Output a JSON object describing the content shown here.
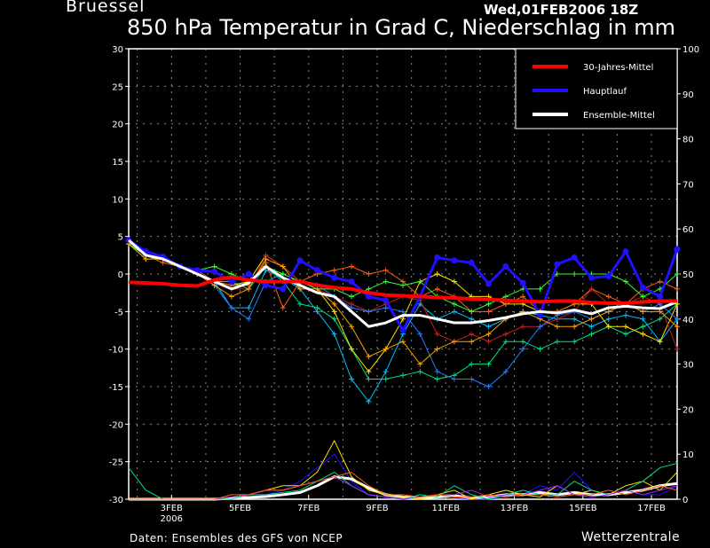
{
  "header": {
    "station": "Bruessel",
    "run": "Wed,01FEB2006 18Z",
    "title": "850 hPa Temperatur in Grad C, Niederschlag in mm"
  },
  "footer": {
    "credit": "Daten: Ensembles des GFS von NCEP",
    "brand": "Wetterzentrale"
  },
  "chart_data": {
    "type": "line",
    "title": "850 hPa Temperatur in Grad C, Niederschlag in mm",
    "x_start": "01FEB2006 18Z",
    "x_step_hours": 12,
    "x_ticks": [
      "3FEB",
      "5FEB",
      "7FEB",
      "9FEB",
      "11FEB",
      "13FEB",
      "15FEB",
      "17FEB"
    ],
    "x_tick_days": [
      1.25,
      3.25,
      5.25,
      7.25,
      9.25,
      11.25,
      13.25,
      15.25
    ],
    "x_year_label": "2006",
    "x_range_days": [
      0,
      16
    ],
    "ylim": [
      -30,
      30
    ],
    "y_ticks": [
      30,
      25,
      20,
      15,
      10,
      5,
      0,
      -5,
      -10,
      -15,
      -20,
      -25,
      -30
    ],
    "y2lim": [
      0,
      100
    ],
    "y2_ticks": [
      100,
      90,
      80,
      70,
      60,
      50,
      40,
      30,
      20,
      10,
      0
    ],
    "grid": true,
    "legend_position": "top-right",
    "legend": [
      {
        "name": "30-Jahres-Mittel",
        "color": "#ff0000"
      },
      {
        "name": "Hauptlauf",
        "color": "#2010ff"
      },
      {
        "name": "Ensemble-Mittel",
        "color": "#ffffff"
      }
    ],
    "series": [
      {
        "name": "30-Jahres-Mittel",
        "color": "#ff0000",
        "values": [
          -1.1,
          -1.2,
          -1.3,
          -1.5,
          -1.6,
          -0.8,
          -0.4,
          -0.8,
          -1.0,
          -1.0,
          -1.0,
          -1.5,
          -1.8,
          -2.0,
          -2.5,
          -2.8,
          -2.9,
          -3.0,
          -3.1,
          -3.2,
          -3.3,
          -3.4,
          -3.5,
          -3.6,
          -3.7,
          -3.6,
          -3.6,
          -3.8,
          -3.9,
          -3.9,
          -3.7,
          -3.6,
          -3.6
        ]
      },
      {
        "name": "Hauptlauf",
        "color": "#2010ff",
        "values": [
          4.5,
          3.0,
          2.3,
          1.0,
          0.5,
          0.3,
          -1.0,
          0.0,
          -1.5,
          -2.0,
          1.8,
          0.5,
          -0.5,
          -1.0,
          -3.0,
          -3.5,
          -7.5,
          -3.0,
          2.2,
          1.8,
          1.5,
          -1.3,
          1.0,
          -1.2,
          -5.5,
          1.3,
          2.2,
          -0.5,
          -0.3,
          3.0,
          -1.8,
          -3.0,
          3.3
        ]
      },
      {
        "name": "Ensemble-Mittel",
        "color": "#ffffff",
        "values": [
          4.5,
          2.5,
          2.0,
          1.0,
          0.0,
          -1.0,
          -2.0,
          -1.2,
          1.0,
          -0.5,
          -1.5,
          -2.5,
          -3.0,
          -5.0,
          -7.0,
          -6.5,
          -5.5,
          -5.5,
          -6.0,
          -6.5,
          -6.5,
          -6.2,
          -5.8,
          -5.3,
          -5.0,
          -5.2,
          -4.8,
          -5.3,
          -4.5,
          -4.3,
          -4.5,
          -4.6,
          -3.7
        ]
      }
    ],
    "members": [
      {
        "color": "#00c0ff",
        "values": [
          4,
          2.5,
          2,
          1,
          0.5,
          -1,
          -4.5,
          -4.5,
          0.5,
          -0.5,
          -2,
          -5,
          -8,
          -14,
          -17,
          -13,
          -8,
          -4,
          -6,
          -5,
          -6,
          -7,
          -6,
          -5,
          -5.5,
          -6,
          -6,
          -7,
          -6,
          -5.5,
          -6,
          -9,
          -6
        ]
      },
      {
        "color": "#00e080",
        "values": [
          4,
          2,
          2,
          1,
          0,
          -1,
          -1,
          -2,
          1,
          -1,
          -4,
          -4.5,
          -6,
          -10,
          -14,
          -14,
          -13.5,
          -13,
          -14,
          -13.5,
          -12,
          -12,
          -9,
          -9,
          -10,
          -9,
          -9,
          -8,
          -7,
          -8,
          -7,
          -6,
          -4
        ]
      },
      {
        "color": "#ffe000",
        "values": [
          4,
          2.5,
          2,
          1,
          0.5,
          -1,
          -1.5,
          -1,
          2.5,
          1,
          -1,
          -2,
          -5,
          -10,
          -13,
          -10,
          -6,
          -1,
          0,
          -1,
          -3,
          -3,
          -4,
          -4,
          -5,
          -5,
          -4,
          -4,
          -7,
          -7,
          -8,
          -9,
          -4
        ]
      },
      {
        "color": "#ff6010",
        "values": [
          4,
          2.5,
          1.5,
          1,
          0,
          -1,
          -1.5,
          -1.5,
          1.5,
          -4.5,
          -1,
          0,
          0.5,
          1,
          0,
          0.5,
          -1,
          -3,
          -2,
          -3,
          -5,
          -5,
          -4,
          -3,
          -5,
          -5,
          -4,
          -2,
          -3,
          -4,
          -2,
          -1,
          -2
        ]
      },
      {
        "color": "#c02020",
        "values": [
          4,
          2.5,
          2,
          1,
          0.5,
          -1,
          -2,
          -2,
          2.5,
          1,
          -1,
          -2,
          -3,
          -4,
          -5,
          -4,
          -3,
          -3.5,
          -8,
          -9,
          -8,
          -9,
          -8,
          -7,
          -7,
          -6,
          -5,
          -2,
          -4,
          -4,
          -3,
          -4,
          -10
        ]
      },
      {
        "color": "#2080ff",
        "values": [
          4,
          2.5,
          2,
          1,
          0,
          -1.5,
          -4.5,
          -6,
          -1,
          0,
          -1,
          -1.5,
          -3,
          -4.5,
          -5,
          -4.5,
          -5,
          -8,
          -13,
          -14,
          -14,
          -15,
          -13,
          -10,
          -7,
          -5.5,
          -5,
          -6,
          -5,
          -4,
          -5,
          -4,
          -6
        ]
      },
      {
        "color": "#30ff30",
        "values": [
          4,
          2.5,
          2,
          1,
          0.5,
          1,
          0,
          -1,
          1,
          0,
          -1,
          -2,
          -2,
          -3,
          -2,
          -1,
          -1.5,
          -1,
          -3,
          -4,
          -5,
          -4,
          -3,
          -2,
          -2,
          0,
          0,
          0,
          0,
          -1,
          -3,
          -2,
          0
        ]
      },
      {
        "color": "#ffa000",
        "values": [
          4,
          2,
          2,
          1,
          0,
          -1.5,
          -3,
          -2,
          2,
          1,
          -2,
          -2,
          -4,
          -7,
          -11,
          -10,
          -9,
          -12,
          -10,
          -9,
          -9,
          -8,
          -6,
          -5,
          -6,
          -7,
          -7,
          -6,
          -5,
          -4,
          -5,
          -5,
          -7
        ]
      }
    ],
    "precip": [
      {
        "name": "Hauptlauf",
        "color": "#2010ff",
        "values": [
          0,
          0,
          0,
          0,
          0,
          0,
          0.3,
          0.5,
          1,
          2,
          4,
          7,
          10,
          4,
          1,
          0.5,
          0,
          0.5,
          0.5,
          0.3,
          0,
          0,
          0.5,
          1,
          3,
          2,
          6,
          2,
          1,
          2,
          1,
          1,
          3
        ]
      },
      {
        "name": "Ensemble-Mittel",
        "color": "#ffffff",
        "values": [
          0,
          0,
          0,
          0,
          0,
          0,
          0.2,
          0.4,
          0.6,
          1,
          1.5,
          3,
          5,
          4.5,
          2.5,
          1,
          0.5,
          0.3,
          0.5,
          0.8,
          0.3,
          0.5,
          1,
          1,
          1.5,
          1,
          1.5,
          1,
          1,
          1.5,
          2,
          3,
          3.5
        ]
      },
      {
        "name": "member",
        "color": "#ffe000",
        "values": [
          0,
          0,
          0,
          0,
          0,
          0,
          0.5,
          1,
          2,
          3,
          3,
          6,
          13,
          5,
          2,
          1,
          0.5,
          0,
          1,
          2,
          0,
          1,
          2,
          1,
          0.5,
          3,
          1,
          2,
          1,
          3,
          4,
          2,
          6
        ]
      },
      {
        "name": "member",
        "color": "#00e080",
        "values": [
          7,
          2,
          0,
          0,
          0,
          0,
          0,
          1,
          1,
          1.5,
          2,
          4,
          6,
          3,
          1,
          0.5,
          0,
          1,
          0.5,
          3,
          1,
          0,
          1,
          2,
          1,
          1,
          4,
          2,
          1,
          2,
          4,
          7,
          8
        ]
      },
      {
        "name": "member",
        "color": "#a020ff",
        "values": [
          0,
          0,
          0,
          0,
          0,
          0,
          0.5,
          1,
          2,
          2,
          3,
          4,
          5,
          3,
          1,
          0.5,
          0,
          0.5,
          1,
          1,
          2,
          0.5,
          1,
          1,
          2,
          3,
          1,
          0.5,
          1,
          2,
          1,
          2,
          3
        ]
      },
      {
        "name": "member",
        "color": "#ff6010",
        "values": [
          0,
          0,
          0,
          0,
          0,
          0,
          1,
          1,
          2,
          2,
          3,
          4,
          5,
          6,
          3,
          1,
          1,
          0.5,
          1,
          0.5,
          0.5,
          1,
          0.5,
          1,
          1,
          0.5,
          1,
          1,
          2,
          1,
          2,
          3,
          2
        ]
      }
    ]
  }
}
